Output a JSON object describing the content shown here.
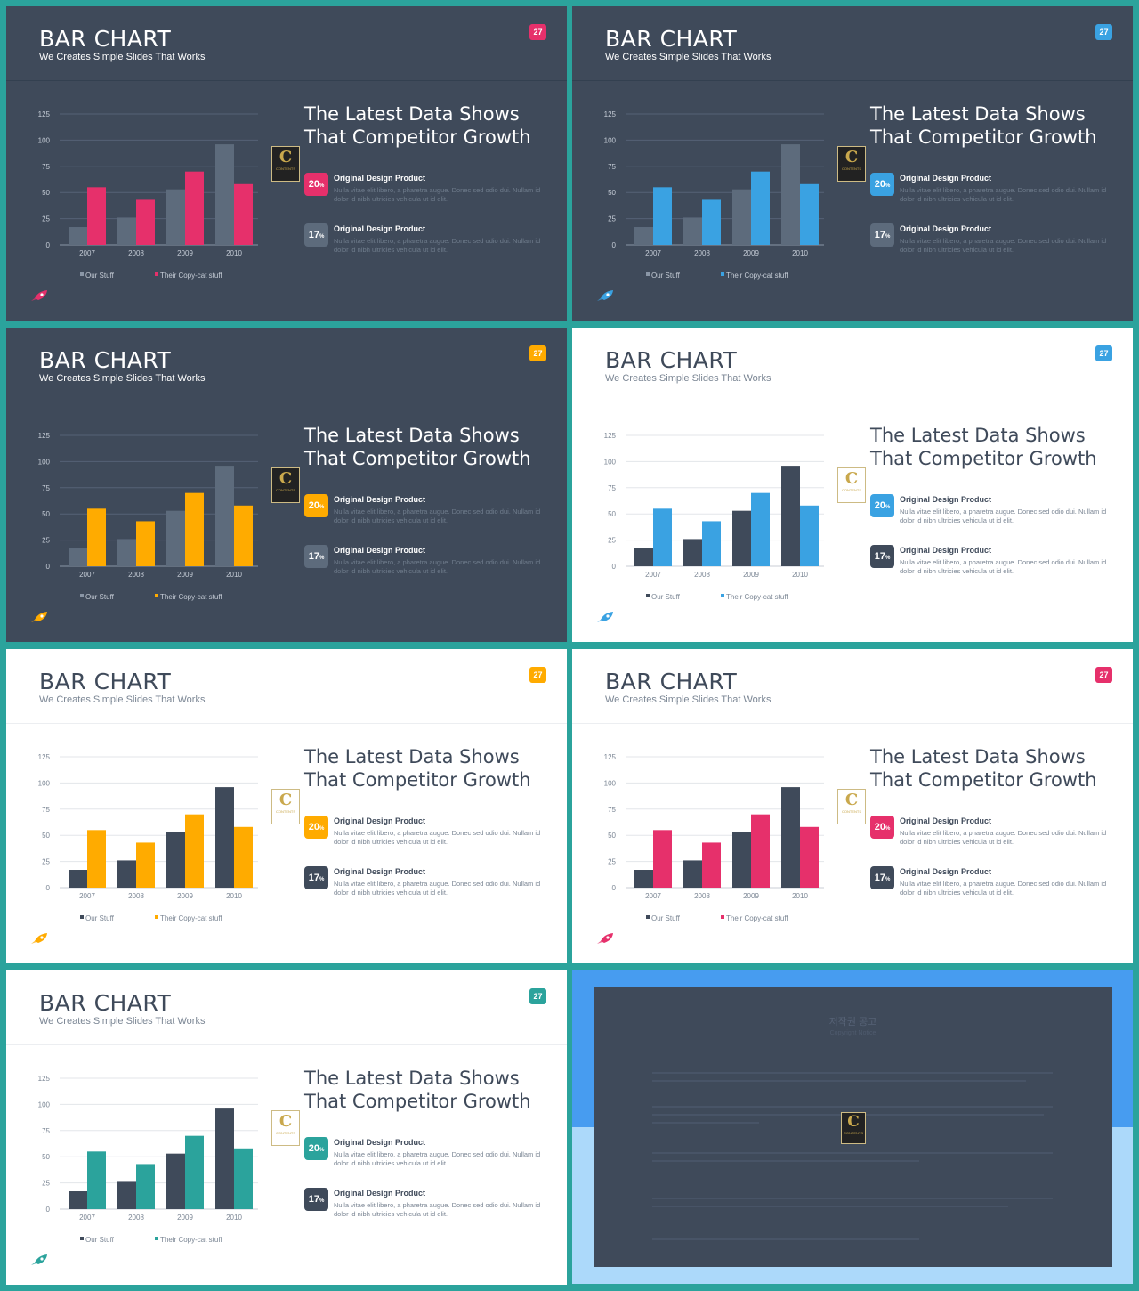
{
  "slide": {
    "title": "BAR CHART",
    "subtitle": "We Creates Simple Slides That Works",
    "page_number": "27",
    "headline": "The Latest Data Shows That Competitor Growth",
    "items": [
      {
        "percent": "20",
        "unit": "%",
        "heading": "Original Design Product",
        "desc": "Nulla vitae elit libero, a pharetra augue. Donec sed odio dui. Nullam id dolor id nibh ultricies vehicula ut id elit."
      },
      {
        "percent": "17",
        "unit": "%",
        "heading": "Original Design Product",
        "desc": "Nulla vitae elit libero, a pharetra augue. Donec sed odio dui. Nullam id dolor id nibh ultricies vehicula ut id elit."
      }
    ],
    "badge_letter": "C",
    "badge_text": "CONTENTS"
  },
  "chart_data": {
    "type": "bar",
    "categories": [
      "2007",
      "2008",
      "2009",
      "2010"
    ],
    "series": [
      {
        "name": "Our Stuff",
        "values": [
          17,
          26,
          53,
          96
        ]
      },
      {
        "name": "Their Copy-cat stuff",
        "values": [
          55,
          43,
          70,
          58
        ]
      }
    ],
    "yticks": [
      0,
      25,
      50,
      75,
      100,
      125
    ],
    "ylim": [
      0,
      125
    ],
    "grid": true,
    "legend": "bottom"
  },
  "variants": [
    {
      "theme": "dark",
      "accent": "#e6306b",
      "our_color": "#5d6b7c"
    },
    {
      "theme": "dark",
      "accent": "#3aa2e2",
      "our_color": "#5d6b7c"
    },
    {
      "theme": "dark",
      "accent": "#ffab00",
      "our_color": "#5d6b7c"
    },
    {
      "theme": "light",
      "accent": "#3aa2e2",
      "our_color": "#3f4a5a"
    },
    {
      "theme": "light",
      "accent": "#ffab00",
      "our_color": "#3f4a5a"
    },
    {
      "theme": "light",
      "accent": "#e6306b",
      "our_color": "#3f4a5a"
    },
    {
      "theme": "light",
      "accent": "#2ba39c",
      "our_color": "#3f4a5a"
    }
  ],
  "notice": {
    "title": "저작권 공고",
    "subtitle": "Copyright Notice",
    "panel_color": "#3f4a5a",
    "top_color": "#479cf0",
    "bottom_color": "#acd9fa"
  },
  "icons": {
    "rocket": "rocket-icon",
    "logo": "contents-logo-icon"
  }
}
